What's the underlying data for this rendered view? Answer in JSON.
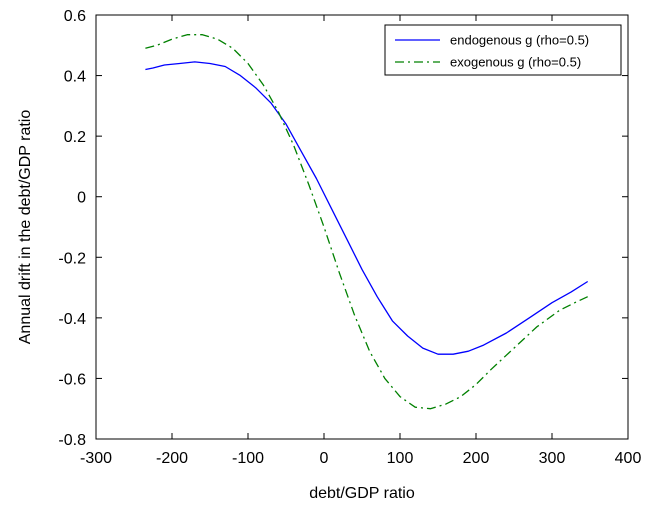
{
  "chart_data": {
    "type": "line",
    "title": "",
    "xlabel": "debt/GDP ratio",
    "ylabel": "Annual drift in the debt/GDP ratio",
    "xlim": [
      -300,
      400
    ],
    "ylim": [
      -0.8,
      0.6
    ],
    "xticks": [
      -300,
      -200,
      -100,
      0,
      100,
      200,
      300,
      400
    ],
    "xtick_labels": [
      "-300",
      "-200",
      "-100",
      "0",
      "100",
      "200",
      "300",
      "400"
    ],
    "yticks": [
      -0.8,
      -0.6,
      -0.4,
      -0.2,
      0,
      0.2,
      0.4,
      0.6
    ],
    "ytick_labels": [
      "-0.8",
      "-0.6",
      "-0.4",
      "-0.2",
      "0",
      "0.2",
      "0.4",
      "0.6"
    ],
    "grid": false,
    "legend_position": "top-right",
    "series": [
      {
        "name": "endogenous g (rho=0.5)",
        "color": "#0000ff",
        "line_style": "solid",
        "x": [
          -235,
          -225,
          -210,
          -190,
          -170,
          -150,
          -130,
          -110,
          -90,
          -70,
          -50,
          -30,
          -10,
          10,
          30,
          50,
          70,
          90,
          110,
          130,
          150,
          170,
          190,
          210,
          240,
          270,
          300,
          325,
          347
        ],
        "y": [
          0.42,
          0.425,
          0.435,
          0.44,
          0.445,
          0.44,
          0.43,
          0.4,
          0.36,
          0.31,
          0.24,
          0.15,
          0.06,
          -0.04,
          -0.14,
          -0.24,
          -0.33,
          -0.41,
          -0.46,
          -0.5,
          -0.52,
          -0.52,
          -0.51,
          -0.49,
          -0.45,
          -0.4,
          -0.35,
          -0.315,
          -0.28
        ]
      },
      {
        "name": "exogenous g (rho=0.5)",
        "color": "#008000",
        "line_style": "dashdot",
        "x": [
          -235,
          -220,
          -200,
          -180,
          -160,
          -140,
          -120,
          -100,
          -80,
          -60,
          -40,
          -20,
          0,
          20,
          40,
          60,
          80,
          100,
          120,
          140,
          160,
          180,
          200,
          220,
          250,
          280,
          310,
          330,
          347
        ],
        "y": [
          0.49,
          0.5,
          0.52,
          0.535,
          0.535,
          0.52,
          0.49,
          0.44,
          0.37,
          0.28,
          0.17,
          0.04,
          -0.1,
          -0.25,
          -0.39,
          -0.51,
          -0.6,
          -0.66,
          -0.695,
          -0.7,
          -0.685,
          -0.66,
          -0.62,
          -0.57,
          -0.5,
          -0.43,
          -0.375,
          -0.35,
          -0.33
        ]
      }
    ]
  }
}
